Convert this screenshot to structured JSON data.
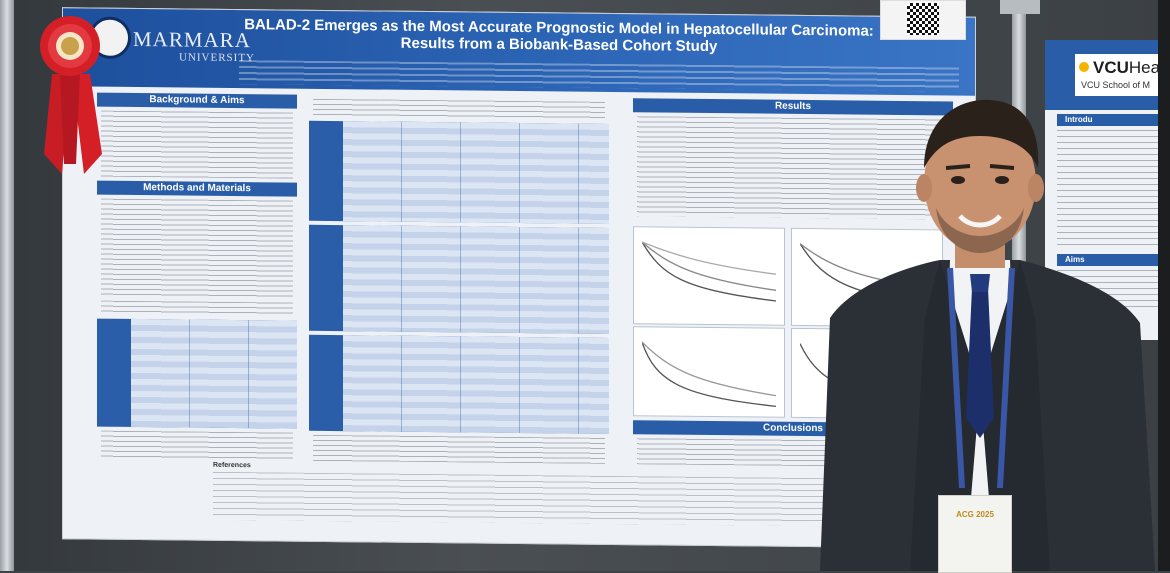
{
  "poster": {
    "title": "BALAD-2 Emerges as the Most Accurate Prognostic Model in Hepatocellular Carcinoma: Results from a Biobank-Based Cohort Study",
    "logo_name": "MARMARA",
    "logo_sub": "UNIVERSITY",
    "sections": {
      "background": "Background & Aims",
      "methods": "Methods and Materials",
      "results": "Results",
      "conclusions": "Conclusions",
      "references": "References"
    }
  },
  "side_poster": {
    "logo": "VCU",
    "logo_suffix": "Hea",
    "logo_sub": "VCU School of M",
    "section_1": "Introdu",
    "section_2": "Aims"
  },
  "badge": {
    "event": "ACG 2025"
  },
  "colors": {
    "poster_blue": "#2a5da8",
    "banner_blue": "#1d4f9c",
    "ribbon_red": "#d41f27",
    "suit": "#2b2f36",
    "tie": "#1c2f6b",
    "lanyard": "#3a56a6"
  }
}
